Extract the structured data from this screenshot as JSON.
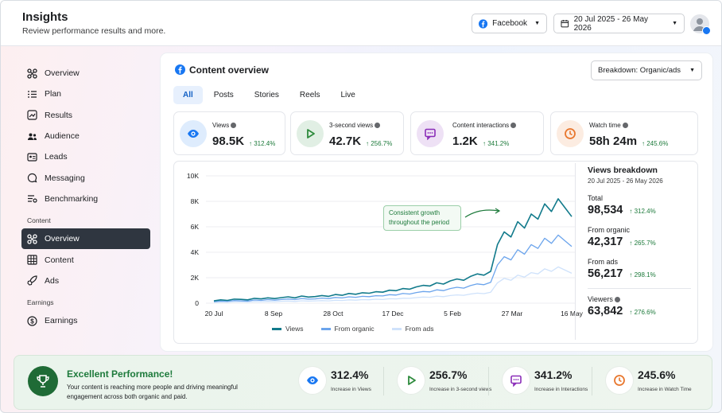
{
  "header": {
    "title": "Insights",
    "subtitle": "Review performance results and more.",
    "account_label": "Facebook",
    "date_range": "20 Jul 2025 - 26 May 2026"
  },
  "sidebar": {
    "items": [
      {
        "label": "Overview",
        "icon": "overview-icon"
      },
      {
        "label": "Plan",
        "icon": "list-icon"
      },
      {
        "label": "Results",
        "icon": "results-icon"
      },
      {
        "label": "Audience",
        "icon": "audience-icon"
      },
      {
        "label": "Leads",
        "icon": "leads-icon"
      },
      {
        "label": "Messaging",
        "icon": "messaging-icon"
      },
      {
        "label": "Benchmarking",
        "icon": "benchmarking-icon"
      }
    ],
    "content_section": "Content",
    "content_items": [
      {
        "label": "Overview",
        "icon": "overview-icon",
        "active": true
      },
      {
        "label": "Content",
        "icon": "grid-icon"
      },
      {
        "label": "Ads",
        "icon": "rocket-icon"
      }
    ],
    "earnings_section": "Earnings",
    "earnings_items": [
      {
        "label": "Earnings",
        "icon": "dollar-icon"
      }
    ]
  },
  "overview": {
    "title": "Content overview",
    "breakdown_label": "Breakdown: Organic/ads",
    "tabs": [
      "All",
      "Posts",
      "Stories",
      "Reels",
      "Live"
    ],
    "active_tab": "All"
  },
  "kpis": [
    {
      "label": "Views",
      "value": "98.5K",
      "change": "↑ 312.4%",
      "icon": "eye-icon",
      "color": "#1877f2"
    },
    {
      "label": "3-second views",
      "value": "42.7K",
      "change": "↑ 256.7%",
      "icon": "play-icon",
      "color": "#2e8b3d"
    },
    {
      "label": "Content interactions",
      "value": "1.2K",
      "change": "↑ 341.2%",
      "icon": "chat-icon",
      "color": "#8a2db8"
    },
    {
      "label": "Watch time",
      "value": "58h 24m",
      "change": "↑ 245.6%",
      "icon": "clock-icon",
      "color": "#e8772e"
    }
  ],
  "chart_data": {
    "type": "line",
    "x_ticks": [
      "20 Jul",
      "8 Sep",
      "28 Oct",
      "17 Dec",
      "5 Feb",
      "27 Mar",
      "16 May"
    ],
    "y_ticks": [
      "0",
      "2K",
      "4K",
      "6K",
      "8K",
      "10K"
    ],
    "ylim": [
      0,
      10000
    ],
    "annotation": "Consistent growth throughout the period",
    "series": [
      {
        "name": "Views",
        "color": "#117a8b",
        "values": [
          180,
          260,
          220,
          320,
          300,
          260,
          380,
          340,
          420,
          360,
          440,
          500,
          420,
          560,
          480,
          520,
          600,
          540,
          680,
          620,
          760,
          700,
          820,
          780,
          900,
          860,
          1020,
          980,
          1150,
          1100,
          1280,
          1400,
          1350,
          1600,
          1500,
          1750,
          1900,
          1800,
          2100,
          2300,
          2200,
          2500,
          4600,
          5600,
          5200,
          6400,
          5900,
          7000,
          6600,
          7800,
          7200,
          8200,
          7500,
          6800
        ]
      },
      {
        "name": "From organic",
        "color": "#6ba4ec",
        "values": [
          120,
          170,
          150,
          210,
          190,
          170,
          250,
          220,
          280,
          240,
          290,
          330,
          280,
          370,
          320,
          340,
          400,
          360,
          450,
          410,
          500,
          460,
          540,
          510,
          590,
          570,
          670,
          640,
          760,
          720,
          840,
          920,
          890,
          1050,
          990,
          1150,
          1250,
          1180,
          1380,
          1510,
          1450,
          1640,
          3000,
          3650,
          3400,
          4200,
          3850,
          4600,
          4300,
          5100,
          4700,
          5350,
          4900,
          4450
        ]
      },
      {
        "name": "From ads",
        "color": "#cfe2fb",
        "values": [
          60,
          90,
          70,
          110,
          110,
          90,
          130,
          120,
          140,
          120,
          150,
          170,
          140,
          190,
          160,
          180,
          200,
          180,
          230,
          210,
          260,
          240,
          280,
          270,
          310,
          290,
          350,
          340,
          390,
          380,
          440,
          480,
          460,
          550,
          510,
          600,
          650,
          620,
          720,
          790,
          750,
          860,
          1600,
          1950,
          1800,
          2200,
          2050,
          2400,
          2300,
          2700,
          2500,
          2850,
          2600,
          2350
        ]
      }
    ]
  },
  "views_breakdown": {
    "title": "Views breakdown",
    "date_range": "20 Jul 2025 - 26 May 2026",
    "rows": [
      {
        "label": "Total",
        "value": "98,534",
        "change": "↑ 312.4%"
      },
      {
        "label": "From organic",
        "value": "42,317",
        "change": "↑ 265.7%"
      },
      {
        "label": "From ads",
        "value": "56,217",
        "change": "↑ 298.1%"
      }
    ],
    "viewers_label": "Viewers",
    "viewers_value": "63,842",
    "viewers_change": "↑ 276.6%"
  },
  "banner": {
    "title": "Excellent Performance!",
    "text": "Your content is reaching more people and driving meaningful engagement across both organic and paid.",
    "stats": [
      {
        "value": "312.4%",
        "label": "Increase in Views",
        "icon": "eye-icon",
        "color": "#1877f2"
      },
      {
        "value": "256.7%",
        "label": "Increase in 3-second views",
        "icon": "play-icon",
        "color": "#2e8b3d"
      },
      {
        "value": "341.2%",
        "label": "Increase in Interactions",
        "icon": "chat-icon",
        "color": "#8a2db8"
      },
      {
        "value": "245.6%",
        "label": "Increase in Watch Time",
        "icon": "clock-icon",
        "color": "#e8772e"
      }
    ]
  }
}
